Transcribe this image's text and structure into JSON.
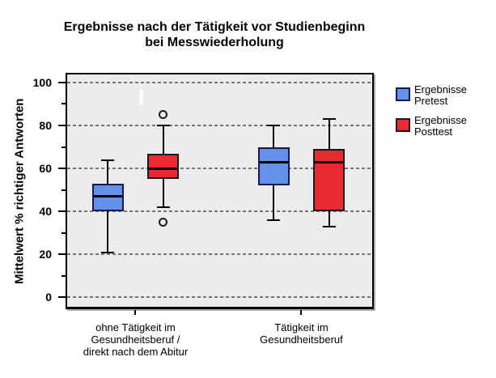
{
  "title": {
    "line1": "Ergebnisse nach der Tätigkeit vor Studienbeginn",
    "line2": "bei Messwiederholung"
  },
  "colors": {
    "pretest_fill": "#6290EA",
    "pretest_border": "#191950",
    "posttest_fill": "#E92A30",
    "posttest_border": "#1A1A1A",
    "plot_bg": "#ECECEC",
    "grid": "#757575",
    "frame": "#000000"
  },
  "x_axis": {
    "labels": [
      [
        "ohne Tätigkeit im",
        "Gesundheitsberuf /",
        "direkt nach dem Abitur"
      ],
      [
        "Tätigkeit im",
        "Gesundheitsberuf"
      ]
    ]
  },
  "legend": {
    "items": [
      {
        "line1": "Ergebnisse",
        "line2": "Pretest",
        "color": "#6290EA",
        "border": "#191950"
      },
      {
        "line1": "Ergebnisse",
        "line2": "Posttest",
        "color": "#E92A30",
        "border": "#1A1A1A"
      }
    ]
  },
  "chart_data": {
    "type": "boxplot",
    "title": "Ergebnisse nach der Tätigkeit vor Studienbeginn bei Messwiederholung",
    "ylabel": "Mittelwert % richtiger Antworten",
    "xlabel": "",
    "ylim": [
      -5.5,
      104.5
    ],
    "yticks_major": [
      0,
      20,
      40,
      60,
      80,
      100
    ],
    "yticks_minor": [
      10,
      30,
      50,
      70,
      90
    ],
    "grid": "horizontal-dashed-at-major-ticks",
    "legend_position": "right",
    "categories": [
      "ohne Tätigkeit im Gesundheitsberuf / direkt nach dem Abitur",
      "Tätigkeit im Gesundheitsberuf"
    ],
    "series": [
      {
        "name": "Ergebnisse Pretest",
        "color": "#6290EA",
        "boxes": [
          {
            "whisker_low": 21,
            "q1": 40,
            "median": 47,
            "q3": 53,
            "whisker_high": 64,
            "outliers": []
          },
          {
            "whisker_low": 36,
            "q1": 52,
            "median": 63,
            "q3": 70,
            "whisker_high": 80,
            "outliers": []
          }
        ]
      },
      {
        "name": "Ergebnisse Posttest",
        "color": "#E92A30",
        "boxes": [
          {
            "whisker_low": 42,
            "q1": 55,
            "median": 60,
            "q3": 67,
            "whisker_high": 80,
            "outliers": [
              85,
              35
            ]
          },
          {
            "whisker_low": 33,
            "q1": 40,
            "median": 63,
            "q3": 69,
            "whisker_high": 83,
            "outliers": []
          }
        ]
      }
    ]
  }
}
